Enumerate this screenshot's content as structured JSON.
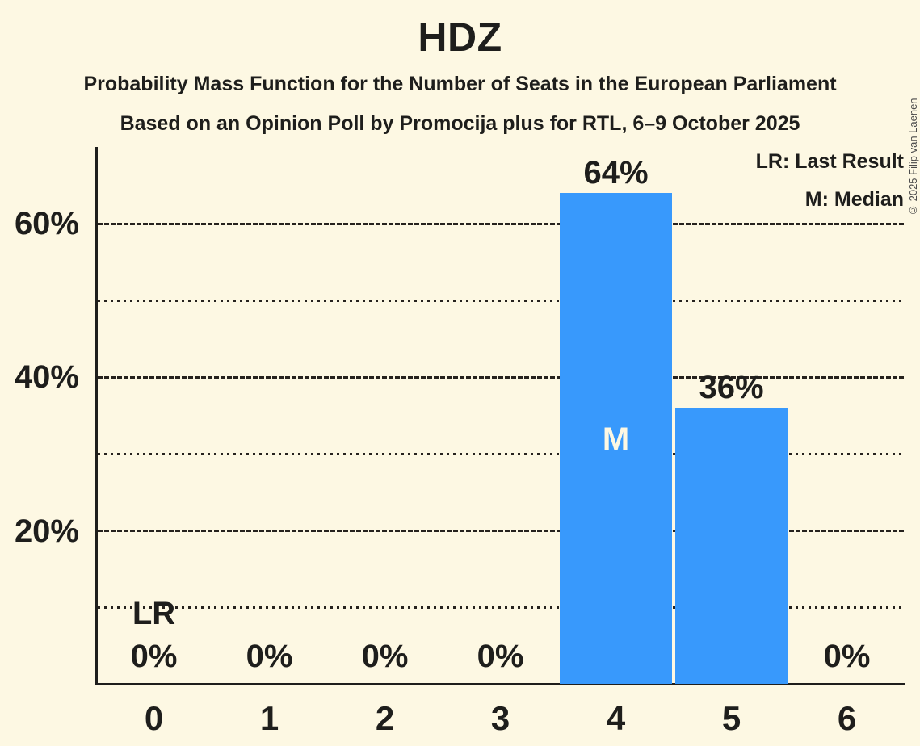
{
  "header": {
    "title": "HDZ",
    "subtitle1": "Probability Mass Function for the Number of Seats in the European Parliament",
    "subtitle2": "Based on an Opinion Poll by Promocija plus for RTL, 6–9 October 2025"
  },
  "legend": {
    "lr": "LR: Last Result",
    "m": "M: Median"
  },
  "copyright": "© 2025 Filip van Laenen",
  "colors": {
    "background": "#FDF8E3",
    "bar": "#3899FC",
    "text": "#1E1E1C",
    "grid": "#26221E",
    "in_bar_label": "#FDF8E3",
    "copyright": "#4A4A4A"
  },
  "chart_data": {
    "type": "bar",
    "title": "HDZ",
    "categories": [
      "0",
      "1",
      "2",
      "3",
      "4",
      "5",
      "6"
    ],
    "values": [
      0,
      0,
      0,
      0,
      64,
      36,
      0
    ],
    "value_labels": [
      "0%",
      "0%",
      "0%",
      "0%",
      "64%",
      "36%",
      "0%"
    ],
    "ylim": [
      0,
      70
    ],
    "grid": "horizontal",
    "yticks_major": {
      "values": [
        20,
        40,
        60
      ],
      "labels": [
        "20%",
        "40%",
        "60%"
      ]
    },
    "yticks_minor": [
      10,
      30,
      50
    ],
    "annotations": {
      "last_result_label": "LR",
      "last_result_seats": 0,
      "median_label": "M",
      "median_seats": 4
    },
    "legend_position": "top-right"
  }
}
